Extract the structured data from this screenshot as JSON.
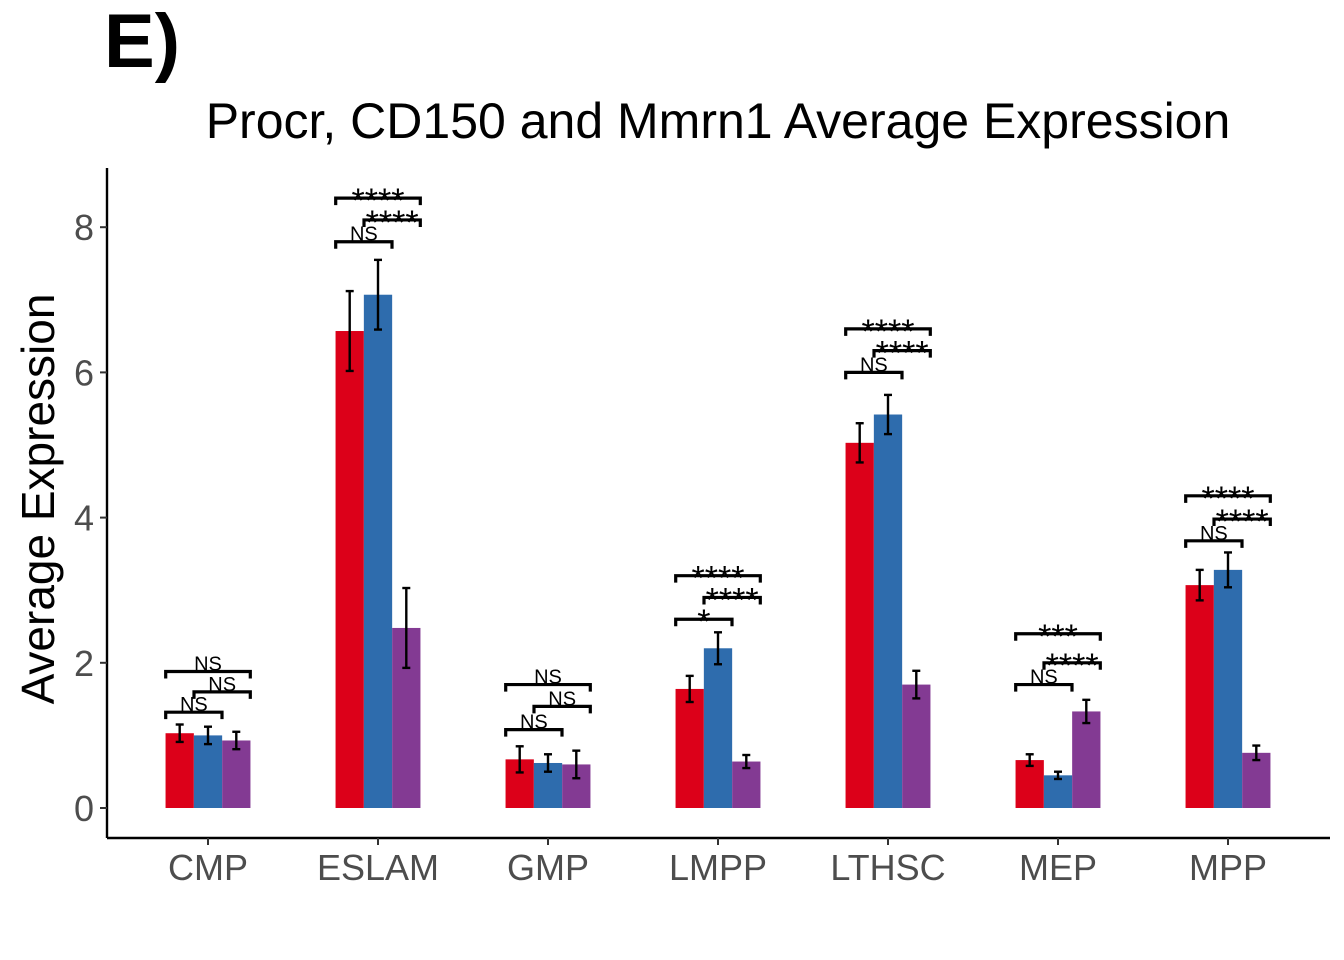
{
  "panel_label": "E)",
  "chart_data": {
    "type": "bar",
    "title": "Procr, CD150 and Mmrn1 Average Expression",
    "xlabel": "",
    "ylabel": "Average Expression",
    "ylim": [
      -0.4,
      8.8
    ],
    "yticks": [
      0,
      2,
      4,
      6,
      8
    ],
    "grid": false,
    "legend": "none",
    "categories": [
      "CMP",
      "ESLAM",
      "GMP",
      "LMPP",
      "LTHSC",
      "MEP",
      "MPP"
    ],
    "series": [
      {
        "color": "#dc0019",
        "values": [
          1.03,
          6.57,
          0.67,
          1.64,
          5.03,
          0.66,
          3.07
        ],
        "err": [
          0.12,
          0.55,
          0.18,
          0.18,
          0.27,
          0.08,
          0.21
        ]
      },
      {
        "color": "#2e6cad",
        "values": [
          1.0,
          7.07,
          0.62,
          2.2,
          5.42,
          0.45,
          3.28
        ],
        "err": [
          0.12,
          0.48,
          0.12,
          0.22,
          0.27,
          0.05,
          0.24
        ]
      },
      {
        "color": "#833a93",
        "values": [
          0.93,
          2.48,
          0.6,
          0.64,
          1.7,
          1.33,
          0.76
        ],
        "err": [
          0.12,
          0.55,
          0.19,
          0.09,
          0.19,
          0.16,
          0.1
        ]
      }
    ],
    "annotations": [
      {
        "category": "CMP",
        "comparisons": [
          {
            "from": 0,
            "to": 1,
            "y": 1.32,
            "label": "NS"
          },
          {
            "from": 1,
            "to": 2,
            "y": 1.6,
            "label": "NS"
          },
          {
            "from": 0,
            "to": 2,
            "y": 1.88,
            "label": "NS"
          }
        ]
      },
      {
        "category": "ESLAM",
        "comparisons": [
          {
            "from": 0,
            "to": 1,
            "y": 7.8,
            "label": "NS"
          },
          {
            "from": 1,
            "to": 2,
            "y": 8.1,
            "label": "****"
          },
          {
            "from": 0,
            "to": 2,
            "y": 8.4,
            "label": "****"
          }
        ]
      },
      {
        "category": "GMP",
        "comparisons": [
          {
            "from": 0,
            "to": 1,
            "y": 1.08,
            "label": "NS"
          },
          {
            "from": 1,
            "to": 2,
            "y": 1.4,
            "label": "NS"
          },
          {
            "from": 0,
            "to": 2,
            "y": 1.7,
            "label": "NS"
          }
        ]
      },
      {
        "category": "LMPP",
        "comparisons": [
          {
            "from": 0,
            "to": 1,
            "y": 2.6,
            "label": "*"
          },
          {
            "from": 1,
            "to": 2,
            "y": 2.9,
            "label": "****"
          },
          {
            "from": 0,
            "to": 2,
            "y": 3.2,
            "label": "****"
          }
        ]
      },
      {
        "category": "LTHSC",
        "comparisons": [
          {
            "from": 0,
            "to": 1,
            "y": 6.0,
            "label": "NS"
          },
          {
            "from": 1,
            "to": 2,
            "y": 6.3,
            "label": "****"
          },
          {
            "from": 0,
            "to": 2,
            "y": 6.6,
            "label": "****"
          }
        ]
      },
      {
        "category": "MEP",
        "comparisons": [
          {
            "from": 0,
            "to": 1,
            "y": 1.7,
            "label": "NS"
          },
          {
            "from": 1,
            "to": 2,
            "y": 2.0,
            "label": "****"
          },
          {
            "from": 0,
            "to": 2,
            "y": 2.4,
            "label": "***"
          }
        ]
      },
      {
        "category": "MPP",
        "comparisons": [
          {
            "from": 0,
            "to": 1,
            "y": 3.68,
            "label": "NS"
          },
          {
            "from": 1,
            "to": 2,
            "y": 3.98,
            "label": "****"
          },
          {
            "from": 0,
            "to": 2,
            "y": 4.3,
            "label": "****"
          }
        ]
      }
    ]
  }
}
